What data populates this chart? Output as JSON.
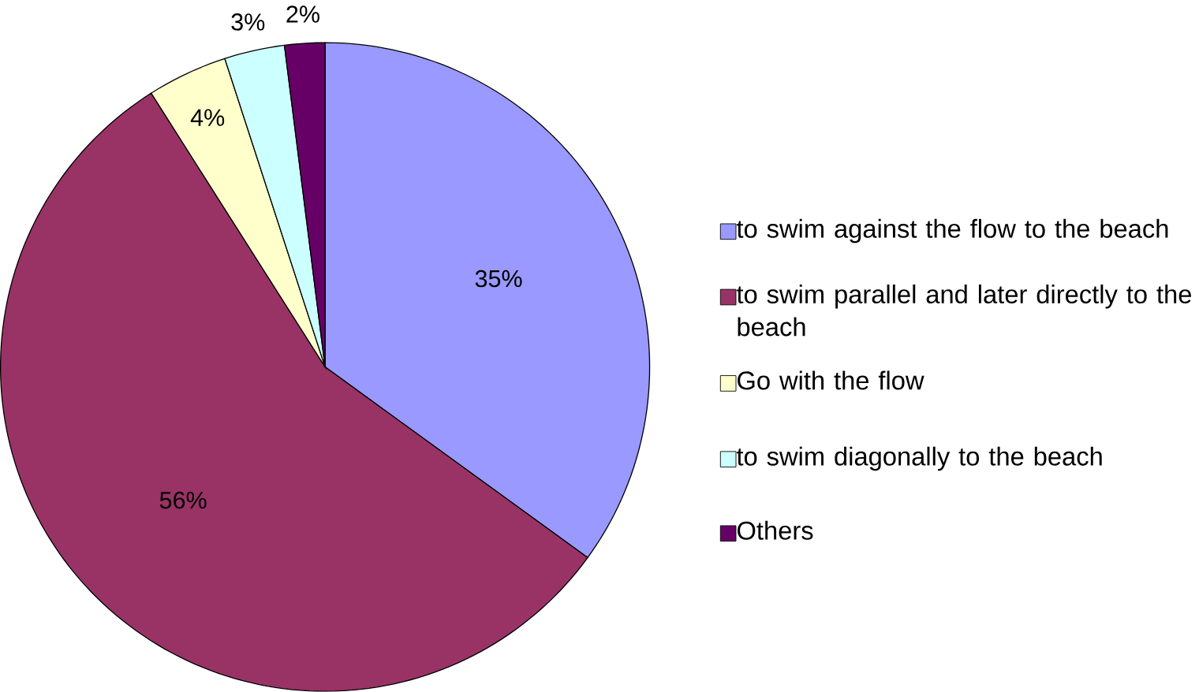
{
  "chart_data": {
    "type": "pie",
    "categories": [
      "to swim against the flow to the beach",
      "to swim parallel and later directly to the beach",
      "Go with the flow",
      "to swim diagonally to the beach",
      "Others"
    ],
    "values": [
      35,
      56,
      4,
      3,
      2
    ],
    "value_labels": [
      "35%",
      "56%",
      "4%",
      "3%",
      "2%"
    ],
    "colors": [
      "#9999ff",
      "#993366",
      "#ffffcc",
      "#ccffff",
      "#660066"
    ],
    "legend": "right"
  }
}
